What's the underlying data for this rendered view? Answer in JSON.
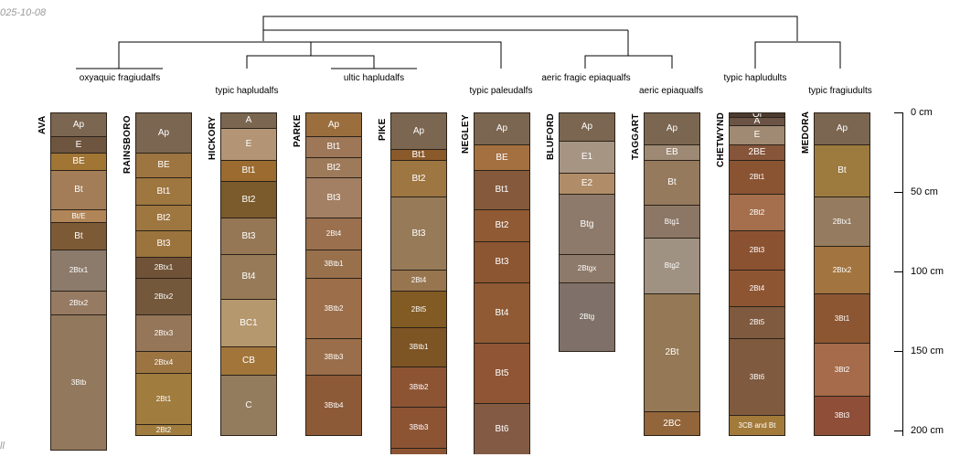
{
  "date_label": "025-10-08",
  "corner_label": "ll",
  "taxa": [
    {
      "id": "t1",
      "label": "oxyaquic fragiudalfs"
    },
    {
      "id": "t2",
      "label": "typic hapludalfs"
    },
    {
      "id": "t3",
      "label": "ultic hapludalfs"
    },
    {
      "id": "t4",
      "label": "typic paleudalfs"
    },
    {
      "id": "t5",
      "label": "aeric fragic epiaqualfs"
    },
    {
      "id": "t6",
      "label": "aeric epiaqualfs"
    },
    {
      "id": "t7",
      "label": "typic hapludults"
    },
    {
      "id": "t8",
      "label": "typic fragiudults"
    }
  ],
  "depth_axis": {
    "unit": "cm",
    "ticks": [
      {
        "value": 0,
        "label": "0 cm"
      },
      {
        "value": 50,
        "label": "50 cm"
      },
      {
        "value": 100,
        "label": "100 cm"
      },
      {
        "value": 150,
        "label": "150 cm"
      },
      {
        "value": 200,
        "label": "200 cm"
      }
    ]
  },
  "profiles": [
    {
      "name": "AVA",
      "horizons": [
        {
          "label": "Ap",
          "top": 0,
          "bottom": 15,
          "color": "#7b6651"
        },
        {
          "label": "E",
          "top": 15,
          "bottom": 25,
          "color": "#6e5540"
        },
        {
          "label": "BE",
          "top": 25,
          "bottom": 36,
          "color": "#a17634"
        },
        {
          "label": "Bt",
          "top": 36,
          "bottom": 61,
          "color": "#a27d57"
        },
        {
          "label": "Bt/E",
          "top": 61,
          "bottom": 69,
          "color": "#b08558"
        },
        {
          "label": "Bt",
          "top": 69,
          "bottom": 86,
          "color": "#7d5a36"
        },
        {
          "label": "2Btx1",
          "top": 86,
          "bottom": 112,
          "color": "#8c7b6b"
        },
        {
          "label": "2Btx2",
          "top": 112,
          "bottom": 127,
          "color": "#967a62"
        },
        {
          "label": "3Btb",
          "top": 127,
          "bottom": 212,
          "color": "#92785d"
        }
      ]
    },
    {
      "name": "RAINSBORO",
      "horizons": [
        {
          "label": "Ap",
          "top": 0,
          "bottom": 25,
          "color": "#7b6651"
        },
        {
          "label": "BE",
          "top": 25,
          "bottom": 41,
          "color": "#9d7541"
        },
        {
          "label": "Bt1",
          "top": 41,
          "bottom": 58,
          "color": "#9e7640"
        },
        {
          "label": "Bt2",
          "top": 58,
          "bottom": 74,
          "color": "#9e7640"
        },
        {
          "label": "Bt3",
          "top": 74,
          "bottom": 91,
          "color": "#9b733d"
        },
        {
          "label": "2Btx1",
          "top": 91,
          "bottom": 104,
          "color": "#6f5237"
        },
        {
          "label": "2Btx2",
          "top": 104,
          "bottom": 127,
          "color": "#74583b"
        },
        {
          "label": "2Btx3",
          "top": 127,
          "bottom": 150,
          "color": "#957658"
        },
        {
          "label": "2Btx4",
          "top": 150,
          "bottom": 164,
          "color": "#9c7442"
        },
        {
          "label": "2Bt1",
          "top": 164,
          "bottom": 196,
          "color": "#a07c3e"
        },
        {
          "label": "2Bt2",
          "top": 196,
          "bottom": 203,
          "color": "#a07c3e"
        }
      ]
    },
    {
      "name": "HICKORY",
      "horizons": [
        {
          "label": "A",
          "top": 0,
          "bottom": 10,
          "color": "#7b6651"
        },
        {
          "label": "E",
          "top": 10,
          "bottom": 30,
          "color": "#b39575"
        },
        {
          "label": "Bt1",
          "top": 30,
          "bottom": 43,
          "color": "#9b6b30"
        },
        {
          "label": "Bt2",
          "top": 43,
          "bottom": 66,
          "color": "#7b5a2b"
        },
        {
          "label": "Bt3",
          "top": 66,
          "bottom": 89,
          "color": "#957755"
        },
        {
          "label": "Bt4",
          "top": 89,
          "bottom": 117,
          "color": "#977b59"
        },
        {
          "label": "BC1",
          "top": 117,
          "bottom": 147,
          "color": "#b6986e"
        },
        {
          "label": "CB",
          "top": 147,
          "bottom": 165,
          "color": "#a2763b"
        },
        {
          "label": "C",
          "top": 165,
          "bottom": 203,
          "color": "#937b5d"
        }
      ]
    },
    {
      "name": "PARKE",
      "horizons": [
        {
          "label": "Ap",
          "top": 0,
          "bottom": 15,
          "color": "#9a6f3d"
        },
        {
          "label": "Bt1",
          "top": 15,
          "bottom": 28,
          "color": "#9d7758"
        },
        {
          "label": "Bt2",
          "top": 28,
          "bottom": 41,
          "color": "#9d7a5a"
        },
        {
          "label": "Bt3",
          "top": 41,
          "bottom": 66,
          "color": "#a37f63"
        },
        {
          "label": "2Bt4",
          "top": 66,
          "bottom": 86,
          "color": "#9a704e"
        },
        {
          "label": "3Btb1",
          "top": 86,
          "bottom": 104,
          "color": "#98704c"
        },
        {
          "label": "3Btb2",
          "top": 104,
          "bottom": 142,
          "color": "#9c6e4a"
        },
        {
          "label": "3Btb3",
          "top": 142,
          "bottom": 165,
          "color": "#9a6e4a"
        },
        {
          "label": "3Btb4",
          "top": 165,
          "bottom": 203,
          "color": "#8d5a37"
        }
      ]
    },
    {
      "name": "PIKE",
      "horizons": [
        {
          "label": "Ap",
          "top": 0,
          "bottom": 23,
          "color": "#7b6651"
        },
        {
          "label": "Bt1",
          "top": 23,
          "bottom": 30,
          "color": "#8b5a2b"
        },
        {
          "label": "Bt2",
          "top": 30,
          "bottom": 53,
          "color": "#9e7642"
        },
        {
          "label": "Bt3",
          "top": 53,
          "bottom": 99,
          "color": "#977b59"
        },
        {
          "label": "2Bt4",
          "top": 99,
          "bottom": 112,
          "color": "#97754f"
        },
        {
          "label": "2Bt5",
          "top": 112,
          "bottom": 135,
          "color": "#815b23"
        },
        {
          "label": "3Btb1",
          "top": 135,
          "bottom": 160,
          "color": "#7d5424"
        },
        {
          "label": "3Btb2",
          "top": 160,
          "bottom": 185,
          "color": "#8d5434"
        },
        {
          "label": "3Btb3",
          "top": 185,
          "bottom": 211,
          "color": "#8d5434"
        },
        {
          "label": "",
          "top": 211,
          "bottom": 220,
          "color": "#8d5434"
        }
      ]
    },
    {
      "name": "NEGLEY",
      "horizons": [
        {
          "label": "Ap",
          "top": 0,
          "bottom": 20,
          "color": "#7b6651"
        },
        {
          "label": "BE",
          "top": 20,
          "bottom": 36,
          "color": "#a57040"
        },
        {
          "label": "Bt1",
          "top": 36,
          "bottom": 61,
          "color": "#84593c"
        },
        {
          "label": "Bt2",
          "top": 61,
          "bottom": 81,
          "color": "#8f5a34"
        },
        {
          "label": "Bt3",
          "top": 81,
          "bottom": 107,
          "color": "#8c5632"
        },
        {
          "label": "Bt4",
          "top": 107,
          "bottom": 145,
          "color": "#8f5a34"
        },
        {
          "label": "Bt5",
          "top": 145,
          "bottom": 183,
          "color": "#8f5534"
        },
        {
          "label": "Bt6",
          "top": 183,
          "bottom": 220,
          "color": "#835b45"
        }
      ]
    },
    {
      "name": "BLUFORD",
      "horizons": [
        {
          "label": "Ap",
          "top": 0,
          "bottom": 18,
          "color": "#7b6651"
        },
        {
          "label": "E1",
          "top": 18,
          "bottom": 38,
          "color": "#a79584"
        },
        {
          "label": "E2",
          "top": 38,
          "bottom": 51,
          "color": "#b08d68"
        },
        {
          "label": "Btg",
          "top": 51,
          "bottom": 89,
          "color": "#8d7a6a"
        },
        {
          "label": "2Btgx",
          "top": 89,
          "bottom": 107,
          "color": "#8d7a6a"
        },
        {
          "label": "2Btg",
          "top": 107,
          "bottom": 150,
          "color": "#7f7169"
        }
      ]
    },
    {
      "name": "TAGGART",
      "horizons": [
        {
          "label": "Ap",
          "top": 0,
          "bottom": 20,
          "color": "#7b6651"
        },
        {
          "label": "EB",
          "top": 20,
          "bottom": 30,
          "color": "#9e8a74"
        },
        {
          "label": "Bt",
          "top": 30,
          "bottom": 58,
          "color": "#967a5e"
        },
        {
          "label": "Btg1",
          "top": 58,
          "bottom": 79,
          "color": "#8c7766"
        },
        {
          "label": "Btg2",
          "top": 79,
          "bottom": 114,
          "color": "#a09283"
        },
        {
          "label": "2Bt",
          "top": 114,
          "bottom": 188,
          "color": "#957855"
        },
        {
          "label": "2BC",
          "top": 188,
          "bottom": 203,
          "color": "#93653a"
        }
      ]
    },
    {
      "name": "CHETWYND",
      "horizons": [
        {
          "label": "Oi",
          "top": 0,
          "bottom": 3,
          "color": "#4c3b2e"
        },
        {
          "label": "A",
          "top": 3,
          "bottom": 8,
          "color": "#6b5445"
        },
        {
          "label": "E",
          "top": 8,
          "bottom": 20,
          "color": "#a08a73"
        },
        {
          "label": "2BE",
          "top": 20,
          "bottom": 30,
          "color": "#86553a"
        },
        {
          "label": "2Bt1",
          "top": 30,
          "bottom": 51,
          "color": "#8a5433"
        },
        {
          "label": "2Bt2",
          "top": 51,
          "bottom": 74,
          "color": "#a56f4d"
        },
        {
          "label": "2Bt3",
          "top": 74,
          "bottom": 99,
          "color": "#8b5232"
        },
        {
          "label": "2Bt4",
          "top": 99,
          "bottom": 122,
          "color": "#8e5533"
        },
        {
          "label": "2Bt5",
          "top": 122,
          "bottom": 142,
          "color": "#7f5a3f"
        },
        {
          "label": "3Bt6",
          "top": 142,
          "bottom": 190,
          "color": "#7f5a3f"
        },
        {
          "label": "3CB and Bt",
          "top": 190,
          "bottom": 203,
          "color": "#a27a3a"
        }
      ]
    },
    {
      "name": "MEDORA",
      "horizons": [
        {
          "label": "Ap",
          "top": 0,
          "bottom": 20,
          "color": "#7b6651"
        },
        {
          "label": "Bt",
          "top": 20,
          "bottom": 53,
          "color": "#9d7b3f"
        },
        {
          "label": "2Btx1",
          "top": 53,
          "bottom": 84,
          "color": "#957b5f"
        },
        {
          "label": "2Btx2",
          "top": 84,
          "bottom": 114,
          "color": "#a2743f"
        },
        {
          "label": "3Bt1",
          "top": 114,
          "bottom": 145,
          "color": "#8c5633"
        },
        {
          "label": "3Bt2",
          "top": 145,
          "bottom": 178,
          "color": "#a56b4a"
        },
        {
          "label": "3Bt3",
          "top": 178,
          "bottom": 203,
          "color": "#8e4e38"
        }
      ]
    }
  ]
}
